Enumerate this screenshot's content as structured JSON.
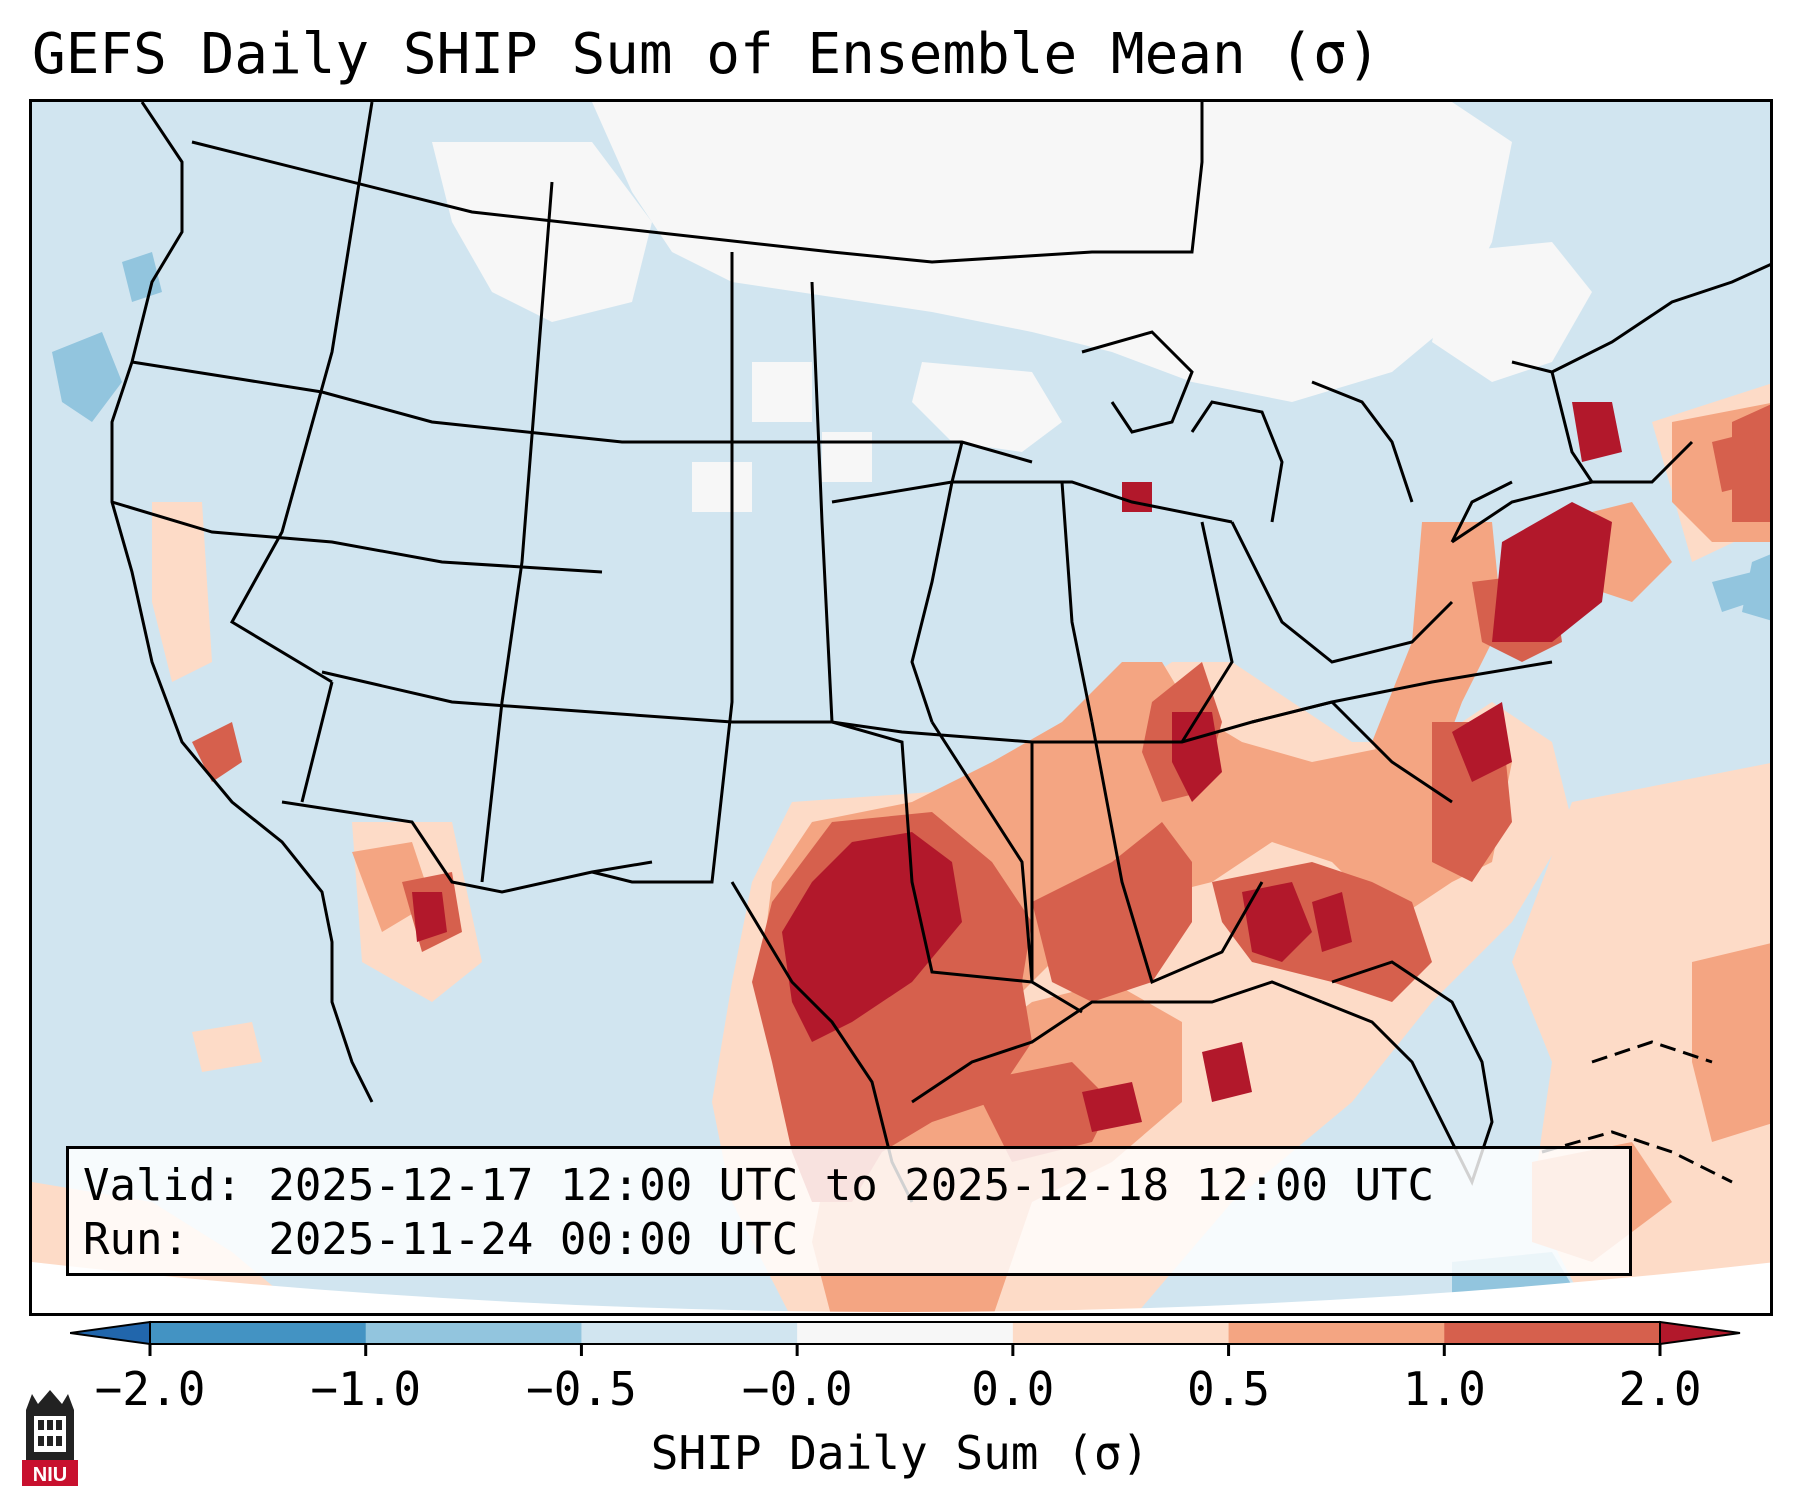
{
  "title": "GEFS Daily SHIP Sum of Ensemble Mean (σ)",
  "info": {
    "valid_line": "Valid: 2025-12-17 12:00 UTC to 2025-12-18 12:00 UTC",
    "run_line": "Run:   2025-11-24 00:00 UTC"
  },
  "colorbar": {
    "label": "SHIP Daily Sum (σ)",
    "ticks": [
      "−2.0",
      "−1.0",
      "−0.5",
      "−0.0",
      "0.0",
      "0.5",
      "1.0",
      "2.0"
    ],
    "colors": [
      "#2166ac",
      "#4393c3",
      "#92c5de",
      "#d1e5f0",
      "#f7f7f7",
      "#fddbc7",
      "#f4a582",
      "#d6604d",
      "#b2182b"
    ]
  },
  "logo": {
    "text": "NIU",
    "icon": "niu-building-logo"
  }
}
